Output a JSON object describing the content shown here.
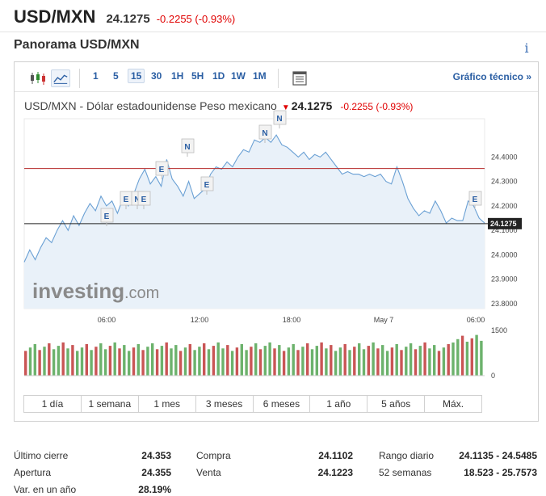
{
  "header": {
    "pair": "USD/MXN",
    "last": "24.1275",
    "change": "-0.2255 (-0.93%)"
  },
  "section_title": "Panorama USD/MXN",
  "info_icon": "info-icon",
  "toolbar": {
    "intervals": [
      "1",
      "5",
      "15",
      "30",
      "1H",
      "5H",
      "1D",
      "1W",
      "1M"
    ],
    "active_interval": "15",
    "tech_link": "Gráfico técnico »"
  },
  "chart": {
    "caption_name": "USD/MXN - Dólar estadounidense Peso mexicano",
    "caption_price": "24.1275",
    "caption_change": "-0.2255  (-0.93%)",
    "watermark_bold": "investing",
    "watermark_rest": ".com",
    "price_tag": "24.1275",
    "colors": {
      "line": "#6aa0d4",
      "area": "#e9f1f9",
      "up_volume": "#6cb26c",
      "down_volume": "#c95555",
      "ref_line": "#b52a2a",
      "badge_text": "#2a5ea3"
    }
  },
  "chart_data": {
    "type": "line",
    "x_ticks": [
      "06:00",
      "12:00",
      "18:00",
      "May 7",
      "06:00"
    ],
    "y_ticks": [
      "24.4000",
      "24.3000",
      "24.2000",
      "24.1000",
      "24.0000",
      "23.9000",
      "23.8000"
    ],
    "ylim": [
      23.78,
      24.54
    ],
    "reference_lines": [
      24.353,
      24.1275
    ],
    "series": [
      {
        "values": [
          23.97,
          24.02,
          23.98,
          24.03,
          24.07,
          24.05,
          24.1,
          24.14,
          24.1,
          24.16,
          24.12,
          24.17,
          24.21,
          24.18,
          24.24,
          24.2,
          24.22,
          24.17,
          24.23,
          24.2,
          24.25,
          24.31,
          24.35,
          24.29,
          24.32,
          24.28,
          24.39,
          24.31,
          24.28,
          24.24,
          24.3,
          24.23,
          24.25,
          24.27,
          24.33,
          24.36,
          24.35,
          24.38,
          24.36,
          24.4,
          24.43,
          24.42,
          24.47,
          24.46,
          24.48,
          24.46,
          24.49,
          24.45,
          24.44,
          24.42,
          24.4,
          24.42,
          24.39,
          24.41,
          24.4,
          24.42,
          24.39,
          24.36,
          24.33,
          24.34,
          24.33,
          24.33,
          24.32,
          24.33,
          24.32,
          24.33,
          24.3,
          24.29,
          24.36,
          24.3,
          24.23,
          24.19,
          24.16,
          24.18,
          24.17,
          24.22,
          24.18,
          24.13,
          24.15,
          24.14,
          24.14,
          24.22,
          24.2,
          24.15,
          24.13
        ]
      }
    ],
    "volume": {
      "ylim": [
        0,
        1500
      ],
      "y_ticks": [
        "1500",
        "0"
      ]
    },
    "event_badges": [
      "E",
      "E",
      "N",
      "E",
      "E",
      "N",
      "E",
      "N",
      "N",
      "E"
    ]
  },
  "ranges": [
    "1 día",
    "1 semana",
    "1 mes",
    "3 meses",
    "6 meses",
    "1 año",
    "5 años",
    "Máx."
  ],
  "stats": {
    "col1": [
      {
        "label": "Último cierre",
        "value": "24.353"
      },
      {
        "label": "Apertura",
        "value": "24.355"
      },
      {
        "label": "Var. en un año",
        "value": "28.19%"
      }
    ],
    "col2": [
      {
        "label": "Compra",
        "value": "24.1102"
      },
      {
        "label": "Venta",
        "value": "24.1223"
      }
    ],
    "col3": [
      {
        "label": "Rango diario",
        "value": "24.1135 - 24.5485"
      },
      {
        "label": "52 semanas",
        "value": "18.523 - 25.7573"
      }
    ]
  }
}
